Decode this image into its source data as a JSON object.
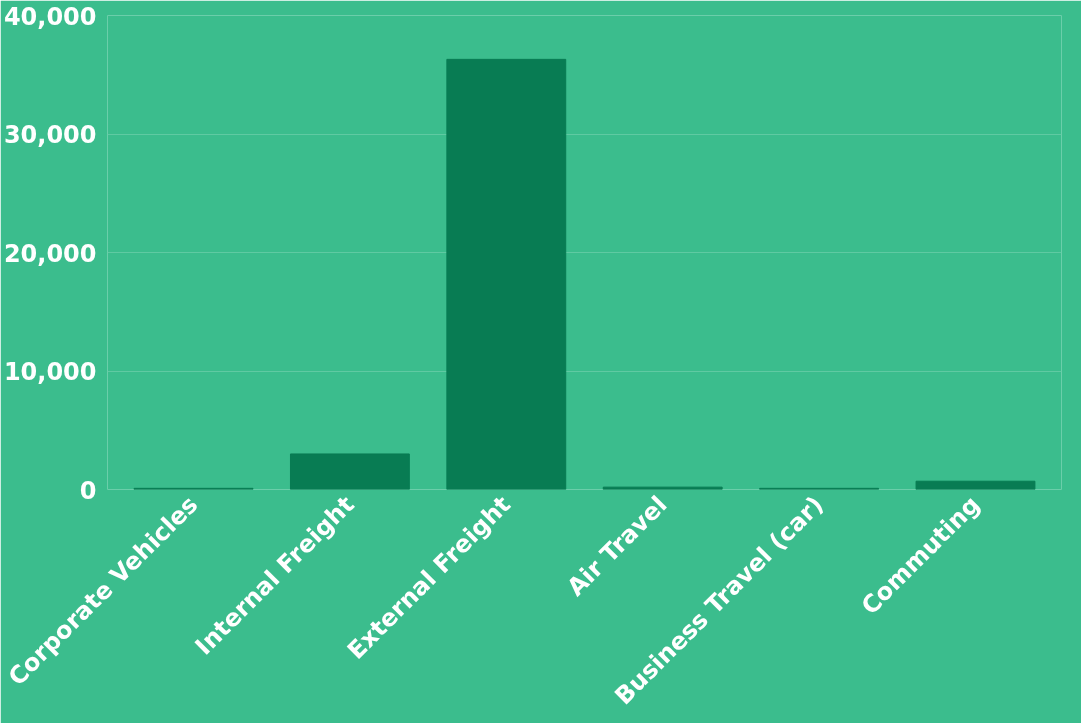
{
  "chart_data": {
    "type": "bar",
    "categories": [
      "Corporate Vehicles",
      "Internal Freight",
      "External Freight",
      "Air Travel",
      "Business Travel (car)",
      "Commuting"
    ],
    "values": [
      100,
      3000,
      36300,
      200,
      100,
      700
    ],
    "color": "#087c53",
    "ylim": [
      0,
      40000
    ],
    "yticks": [
      {
        "value": 0,
        "label": "0"
      },
      {
        "value": 10000,
        "label": "10,000"
      },
      {
        "value": 20000,
        "label": "20,000"
      },
      {
        "value": 30000,
        "label": "30,000"
      },
      {
        "value": 40000,
        "label": "40,000"
      }
    ],
    "grid": "y"
  }
}
